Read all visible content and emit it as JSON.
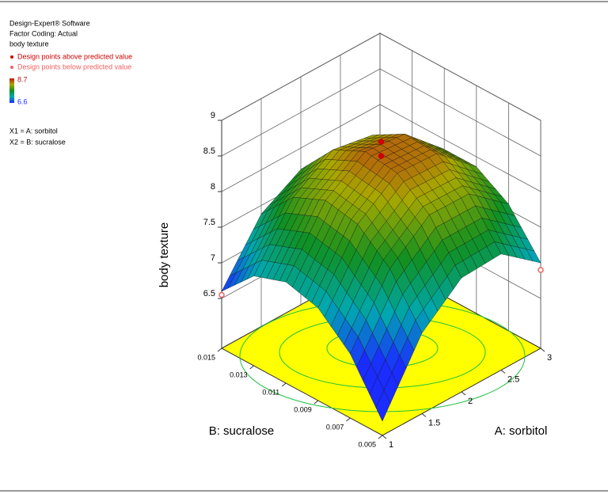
{
  "chart_data": {
    "type": "surface3d",
    "header": [
      "Design-Expert® Software",
      "Factor Coding: Actual",
      "body texture"
    ],
    "legend": {
      "above": "Design points above predicted value",
      "below": "Design points below predicted value",
      "above_color": "#d00000",
      "below_color": "#f06060",
      "color_max": 8.7,
      "color_min": 6.6
    },
    "factors": [
      "X1 = A: sorbitol",
      "X2 = B: sucralose"
    ],
    "xlabel": "A: sorbitol",
    "ylabel": "B: sucralose",
    "zlabel": "body texture",
    "x": [
      1,
      1.5,
      2,
      2.5,
      3
    ],
    "y": [
      0.005,
      0.007,
      0.009,
      0.011,
      0.013,
      0.015
    ],
    "values": [
      [
        6.0,
        6.7,
        7.1,
        7.22,
        7.06,
        6.6
      ],
      [
        6.93,
        7.59,
        7.97,
        8.06,
        7.86,
        7.38
      ],
      [
        7.4,
        8.04,
        8.38,
        8.44,
        8.22,
        7.7
      ],
      [
        7.43,
        8.03,
        8.35,
        8.38,
        8.12,
        7.58
      ],
      [
        7.0,
        7.58,
        7.86,
        7.86,
        7.58,
        7.0
      ]
    ],
    "xlim": [
      1,
      3
    ],
    "ylim": [
      0.005,
      0.015
    ],
    "zlim": [
      5.8,
      9
    ],
    "xticks": [
      1,
      1.5,
      2,
      2.5,
      3
    ],
    "yticks": [
      0.005,
      0.007,
      0.009,
      0.011,
      0.013,
      0.015
    ],
    "zticks": [
      6.5,
      7,
      7.5,
      8,
      8.5,
      9
    ],
    "colormap": [
      "#1a2cff",
      "#00a8b0",
      "#109020",
      "#a8a800",
      "#c01818"
    ],
    "floor_color": "#ffff00",
    "grid": true,
    "design_points": [
      {
        "x": 2,
        "y": 0.01,
        "z": 8.7,
        "position": "above"
      },
      {
        "x": 2,
        "y": 0.01,
        "z": 8.5,
        "position": "above"
      },
      {
        "x": 1,
        "y": 0.015,
        "z": 6.55,
        "position": "below"
      },
      {
        "x": 3,
        "y": 0.005,
        "z": 6.9,
        "position": "below"
      }
    ]
  }
}
